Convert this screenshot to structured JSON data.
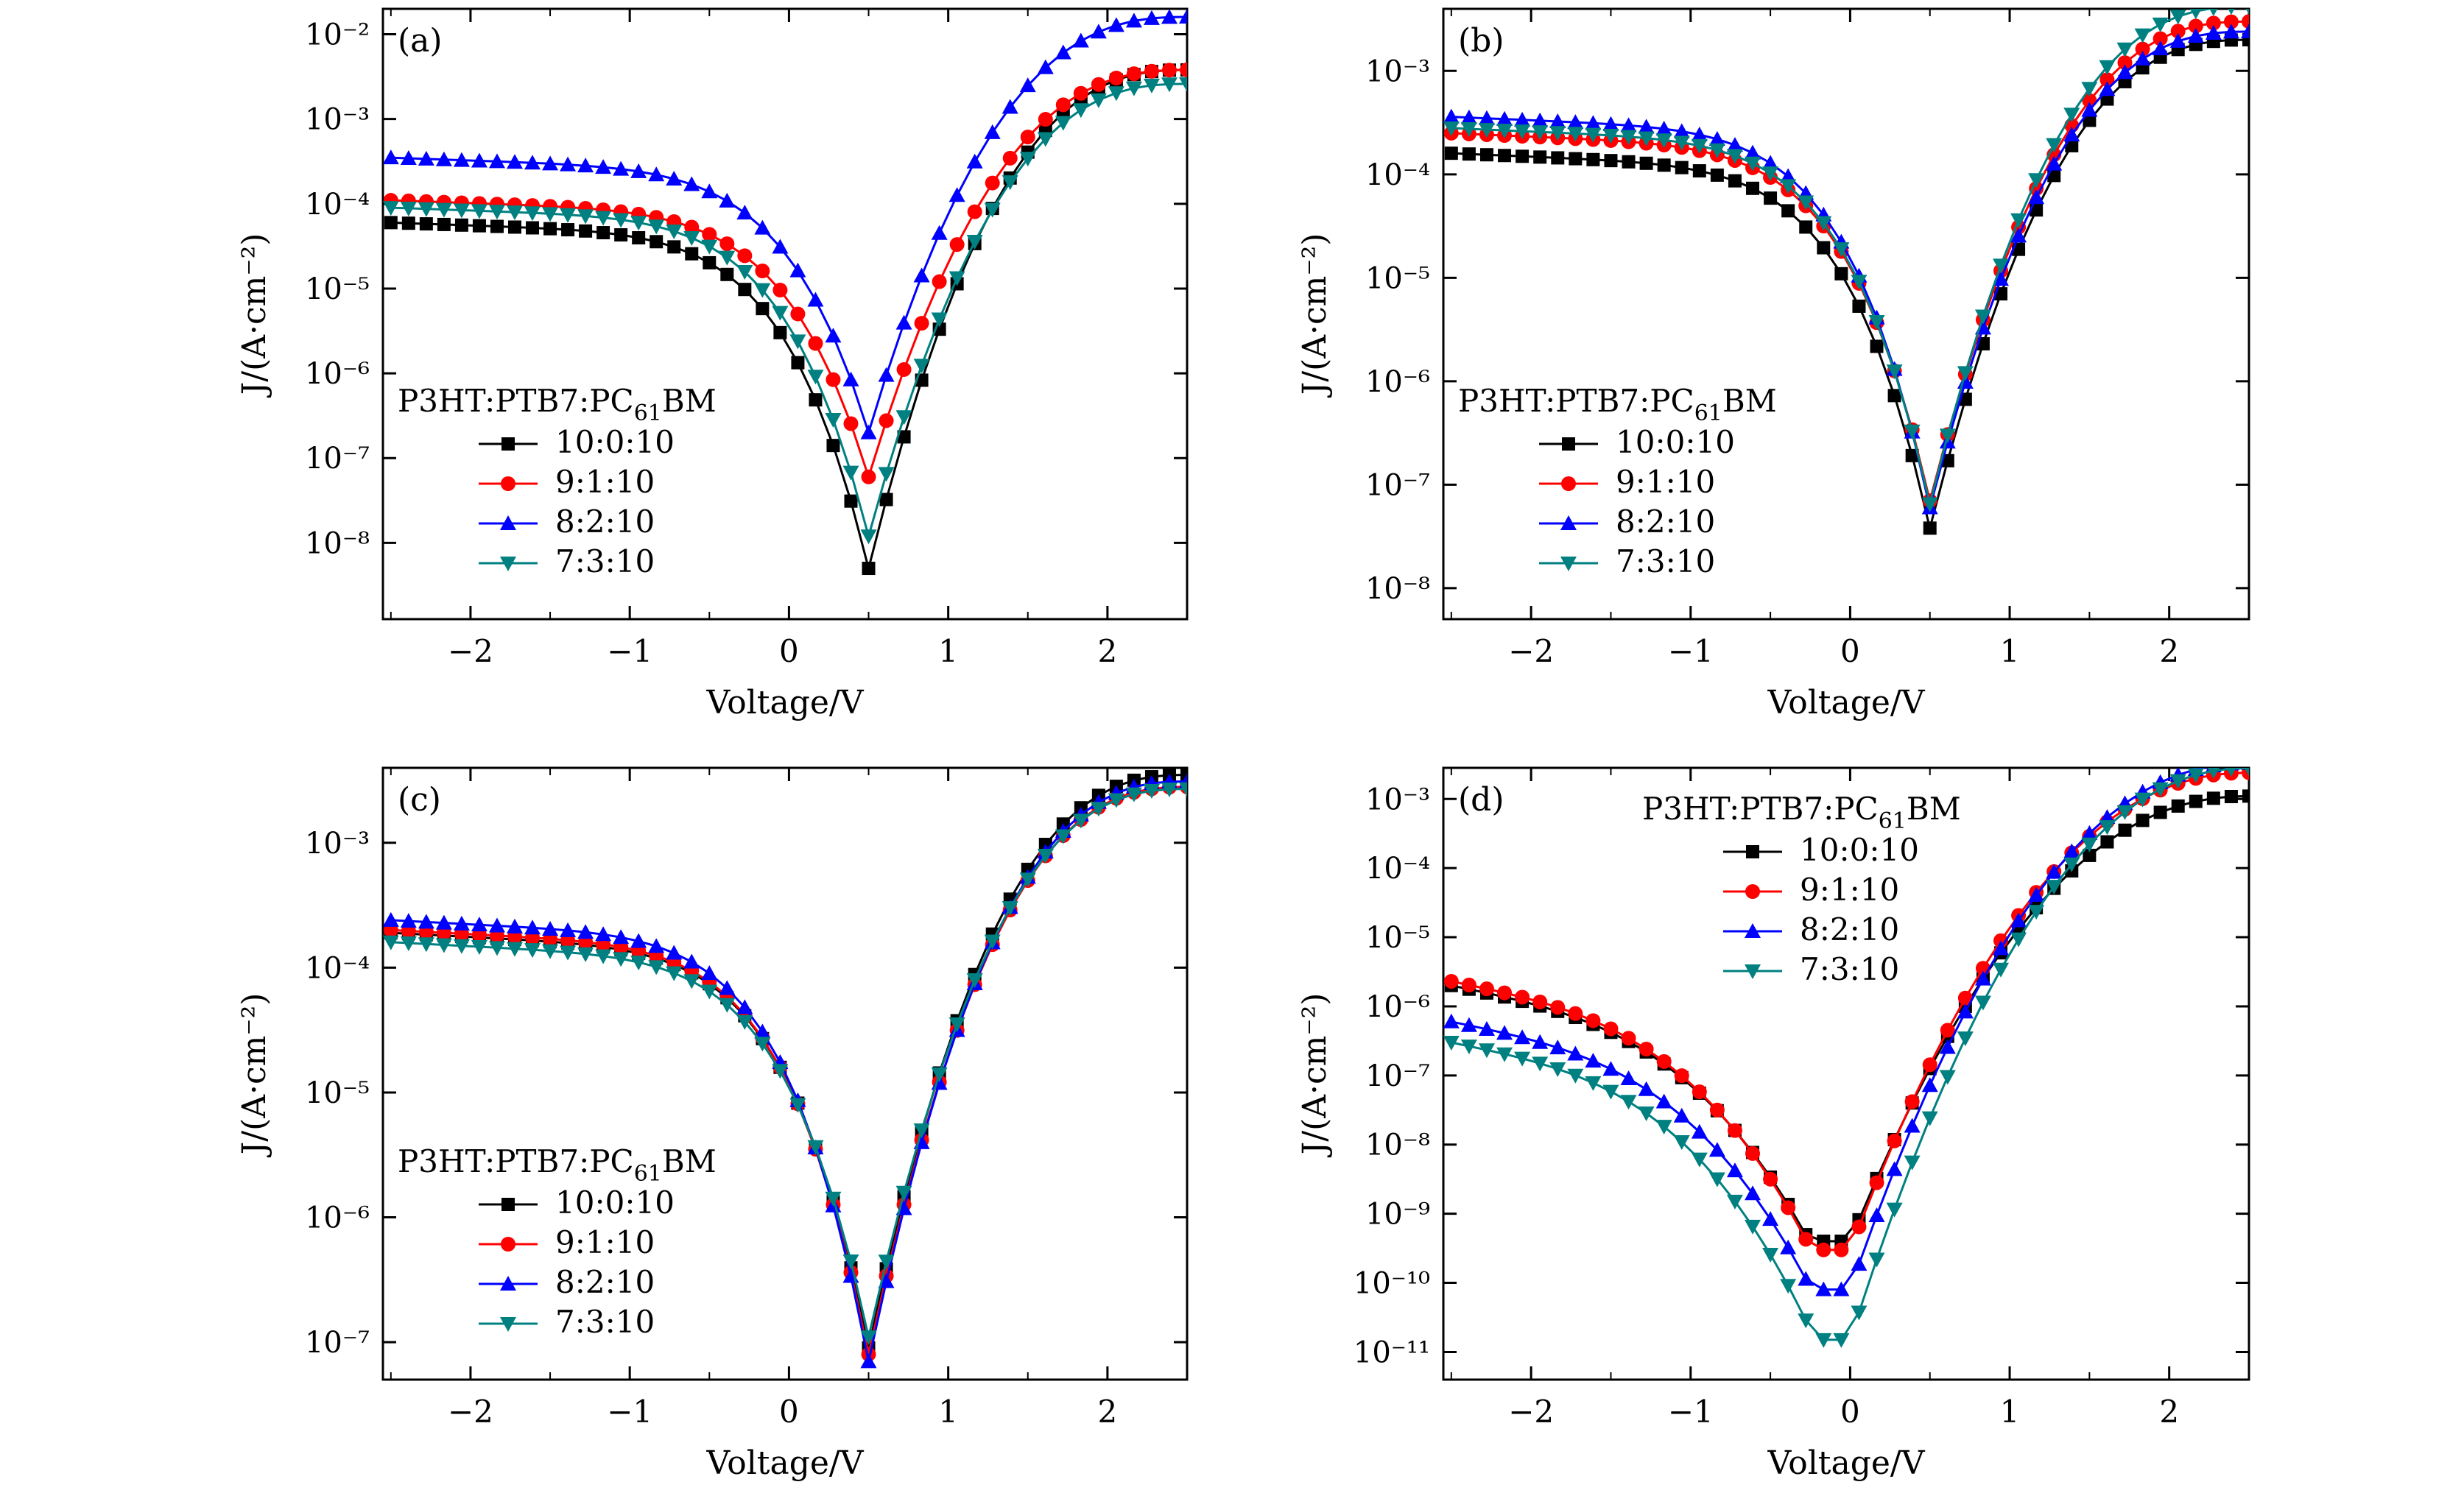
{
  "figure": {
    "panel_count": 4
  },
  "chart_data": [
    {
      "panel": "(a)",
      "type": "line",
      "scale_y": "log",
      "xlabel": "Voltage/V",
      "ylabel": "J/(A·cm⁻²)",
      "xlim": [
        -2.55,
        2.5
      ],
      "ylim_exp": [
        -8.9,
        -1.7
      ],
      "xticks": [
        -2,
        -1,
        0,
        1,
        2
      ],
      "xtick_labels": [
        "−2",
        "−1",
        "0",
        "1",
        "2"
      ],
      "yticks_exp": [
        -8,
        -7,
        -6,
        -5,
        -4,
        -3,
        -2
      ],
      "ytick_labels": [
        "10⁻⁸",
        "10⁻⁷",
        "10⁻⁶",
        "10⁻⁵",
        "10⁻⁴",
        "10⁻³",
        "10⁻²"
      ],
      "legend_title": "P3HT:PTB7:PC61BM",
      "legend_title_parts": [
        "P3HT:PTB7:PC",
        "61",
        "BM"
      ],
      "legend_position": "lower-left",
      "minimum_voltage": 0.5,
      "series": [
        {
          "name": "10:0:10",
          "color": "#000000",
          "marker": "square",
          "ref_J": 6e-05,
          "min_J": 5e-09,
          "end_J": 0.0038
        },
        {
          "name": "9:1:10",
          "color": "#ff0000",
          "marker": "circle",
          "ref_J": 0.00011,
          "min_J": 6e-08,
          "end_J": 0.0038
        },
        {
          "name": "8:2:10",
          "color": "#0000ff",
          "marker": "triangle",
          "ref_J": 0.00035,
          "min_J": 2e-07,
          "end_J": 0.016
        },
        {
          "name": "7:3:10",
          "color": "#008080",
          "marker": "triangle-down",
          "ref_J": 9e-05,
          "min_J": 1.2e-08,
          "end_J": 0.0026
        }
      ]
    },
    {
      "panel": "(b)",
      "type": "line",
      "scale_y": "log",
      "xlabel": "Voltage/V",
      "ylabel": "J/(A·cm⁻²)",
      "xlim": [
        -2.55,
        2.5
      ],
      "ylim_exp": [
        -8.3,
        -2.4
      ],
      "xticks": [
        -2,
        -1,
        0,
        1,
        2
      ],
      "xtick_labels": [
        "−2",
        "−1",
        "0",
        "1",
        "2"
      ],
      "yticks_exp": [
        -8,
        -7,
        -6,
        -5,
        -4,
        -3
      ],
      "ytick_labels": [
        "10⁻⁸",
        "10⁻⁷",
        "10⁻⁶",
        "10⁻⁵",
        "10⁻⁴",
        "10⁻³"
      ],
      "legend_title": "P3HT:PTB7:PC61BM",
      "legend_title_parts": [
        "P3HT:PTB7:PC",
        "61",
        "BM"
      ],
      "legend_position": "lower-left",
      "minimum_voltage": 0.5,
      "series": [
        {
          "name": "10:0:10",
          "color": "#000000",
          "marker": "square",
          "ref_J": 0.00016,
          "min_J": 3.8e-08,
          "end_J": 0.002
        },
        {
          "name": "9:1:10",
          "color": "#ff0000",
          "marker": "circle",
          "ref_J": 0.00025,
          "min_J": 7e-08,
          "end_J": 0.003
        },
        {
          "name": "8:2:10",
          "color": "#0000ff",
          "marker": "triangle",
          "ref_J": 0.00036,
          "min_J": 6e-08,
          "end_J": 0.0024
        },
        {
          "name": "7:3:10",
          "color": "#008080",
          "marker": "triangle-down",
          "ref_J": 0.00028,
          "min_J": 6.5e-08,
          "end_J": 0.0042
        }
      ]
    },
    {
      "panel": "(c)",
      "type": "line",
      "scale_y": "log",
      "xlabel": "Voltage/V",
      "ylabel": "J/(A·cm⁻²)",
      "xlim": [
        -2.55,
        2.5
      ],
      "ylim_exp": [
        -7.3,
        -2.4
      ],
      "xticks": [
        -2,
        -1,
        0,
        1,
        2
      ],
      "xtick_labels": [
        "−2",
        "−1",
        "0",
        "1",
        "2"
      ],
      "yticks_exp": [
        -7,
        -6,
        -5,
        -4,
        -3
      ],
      "ytick_labels": [
        "10⁻⁷",
        "10⁻⁶",
        "10⁻⁵",
        "10⁻⁴",
        "10⁻³"
      ],
      "legend_title": "P3HT:PTB7:PC61BM",
      "legend_title_parts": [
        "P3HT:PTB7:PC",
        "61",
        "BM"
      ],
      "legend_position": "lower-left",
      "minimum_voltage": 0.5,
      "series": [
        {
          "name": "10:0:10",
          "color": "#000000",
          "marker": "square",
          "ref_J": 0.00019,
          "min_J": 9e-08,
          "end_J": 0.0035
        },
        {
          "name": "9:1:10",
          "color": "#ff0000",
          "marker": "circle",
          "ref_J": 0.0002,
          "min_J": 8e-08,
          "end_J": 0.0028
        },
        {
          "name": "8:2:10",
          "color": "#0000ff",
          "marker": "triangle",
          "ref_J": 0.00024,
          "min_J": 7e-08,
          "end_J": 0.0031
        },
        {
          "name": "7:3:10",
          "color": "#008080",
          "marker": "triangle-down",
          "ref_J": 0.00016,
          "min_J": 1.1e-07,
          "end_J": 0.0027
        }
      ]
    },
    {
      "panel": "(d)",
      "type": "line",
      "scale_y": "log",
      "xlabel": "Voltage/V",
      "ylabel": "J/(A·cm⁻²)",
      "xlim": [
        -2.55,
        2.5
      ],
      "ylim_exp": [
        -11.4,
        -2.55
      ],
      "xticks": [
        -2,
        -1,
        0,
        1,
        2
      ],
      "xtick_labels": [
        "−2",
        "−1",
        "0",
        "1",
        "2"
      ],
      "yticks_exp": [
        -11,
        -10,
        -9,
        -8,
        -7,
        -6,
        -5,
        -4,
        -3
      ],
      "ytick_labels": [
        "10⁻¹¹",
        "10⁻¹⁰",
        "10⁻⁹",
        "10⁻⁸",
        "10⁻⁷",
        "10⁻⁶",
        "10⁻⁵",
        "10⁻⁴",
        "10⁻³"
      ],
      "legend_title": "P3HT:PTB7:PC61BM",
      "legend_title_parts": [
        "P3HT:PTB7:PC",
        "61",
        "BM"
      ],
      "legend_position": "top-left",
      "minimum_voltage": 0.0,
      "series": [
        {
          "name": "10:0:10",
          "color": "#000000",
          "marker": "square",
          "ref_J": 2e-06,
          "min_J": 4e-10,
          "end_J": 0.0011
        },
        {
          "name": "9:1:10",
          "color": "#ff0000",
          "marker": "circle",
          "ref_J": 2.3e-06,
          "min_J": 3e-10,
          "end_J": 0.0024
        },
        {
          "name": "8:2:10",
          "color": "#0000ff",
          "marker": "triangle",
          "ref_J": 6e-07,
          "min_J": 8e-11,
          "end_J": 0.0033
        },
        {
          "name": "7:3:10",
          "color": "#008080",
          "marker": "triangle-down",
          "ref_J": 3e-07,
          "min_J": 1.5e-11,
          "end_J": 0.0028
        }
      ]
    }
  ]
}
